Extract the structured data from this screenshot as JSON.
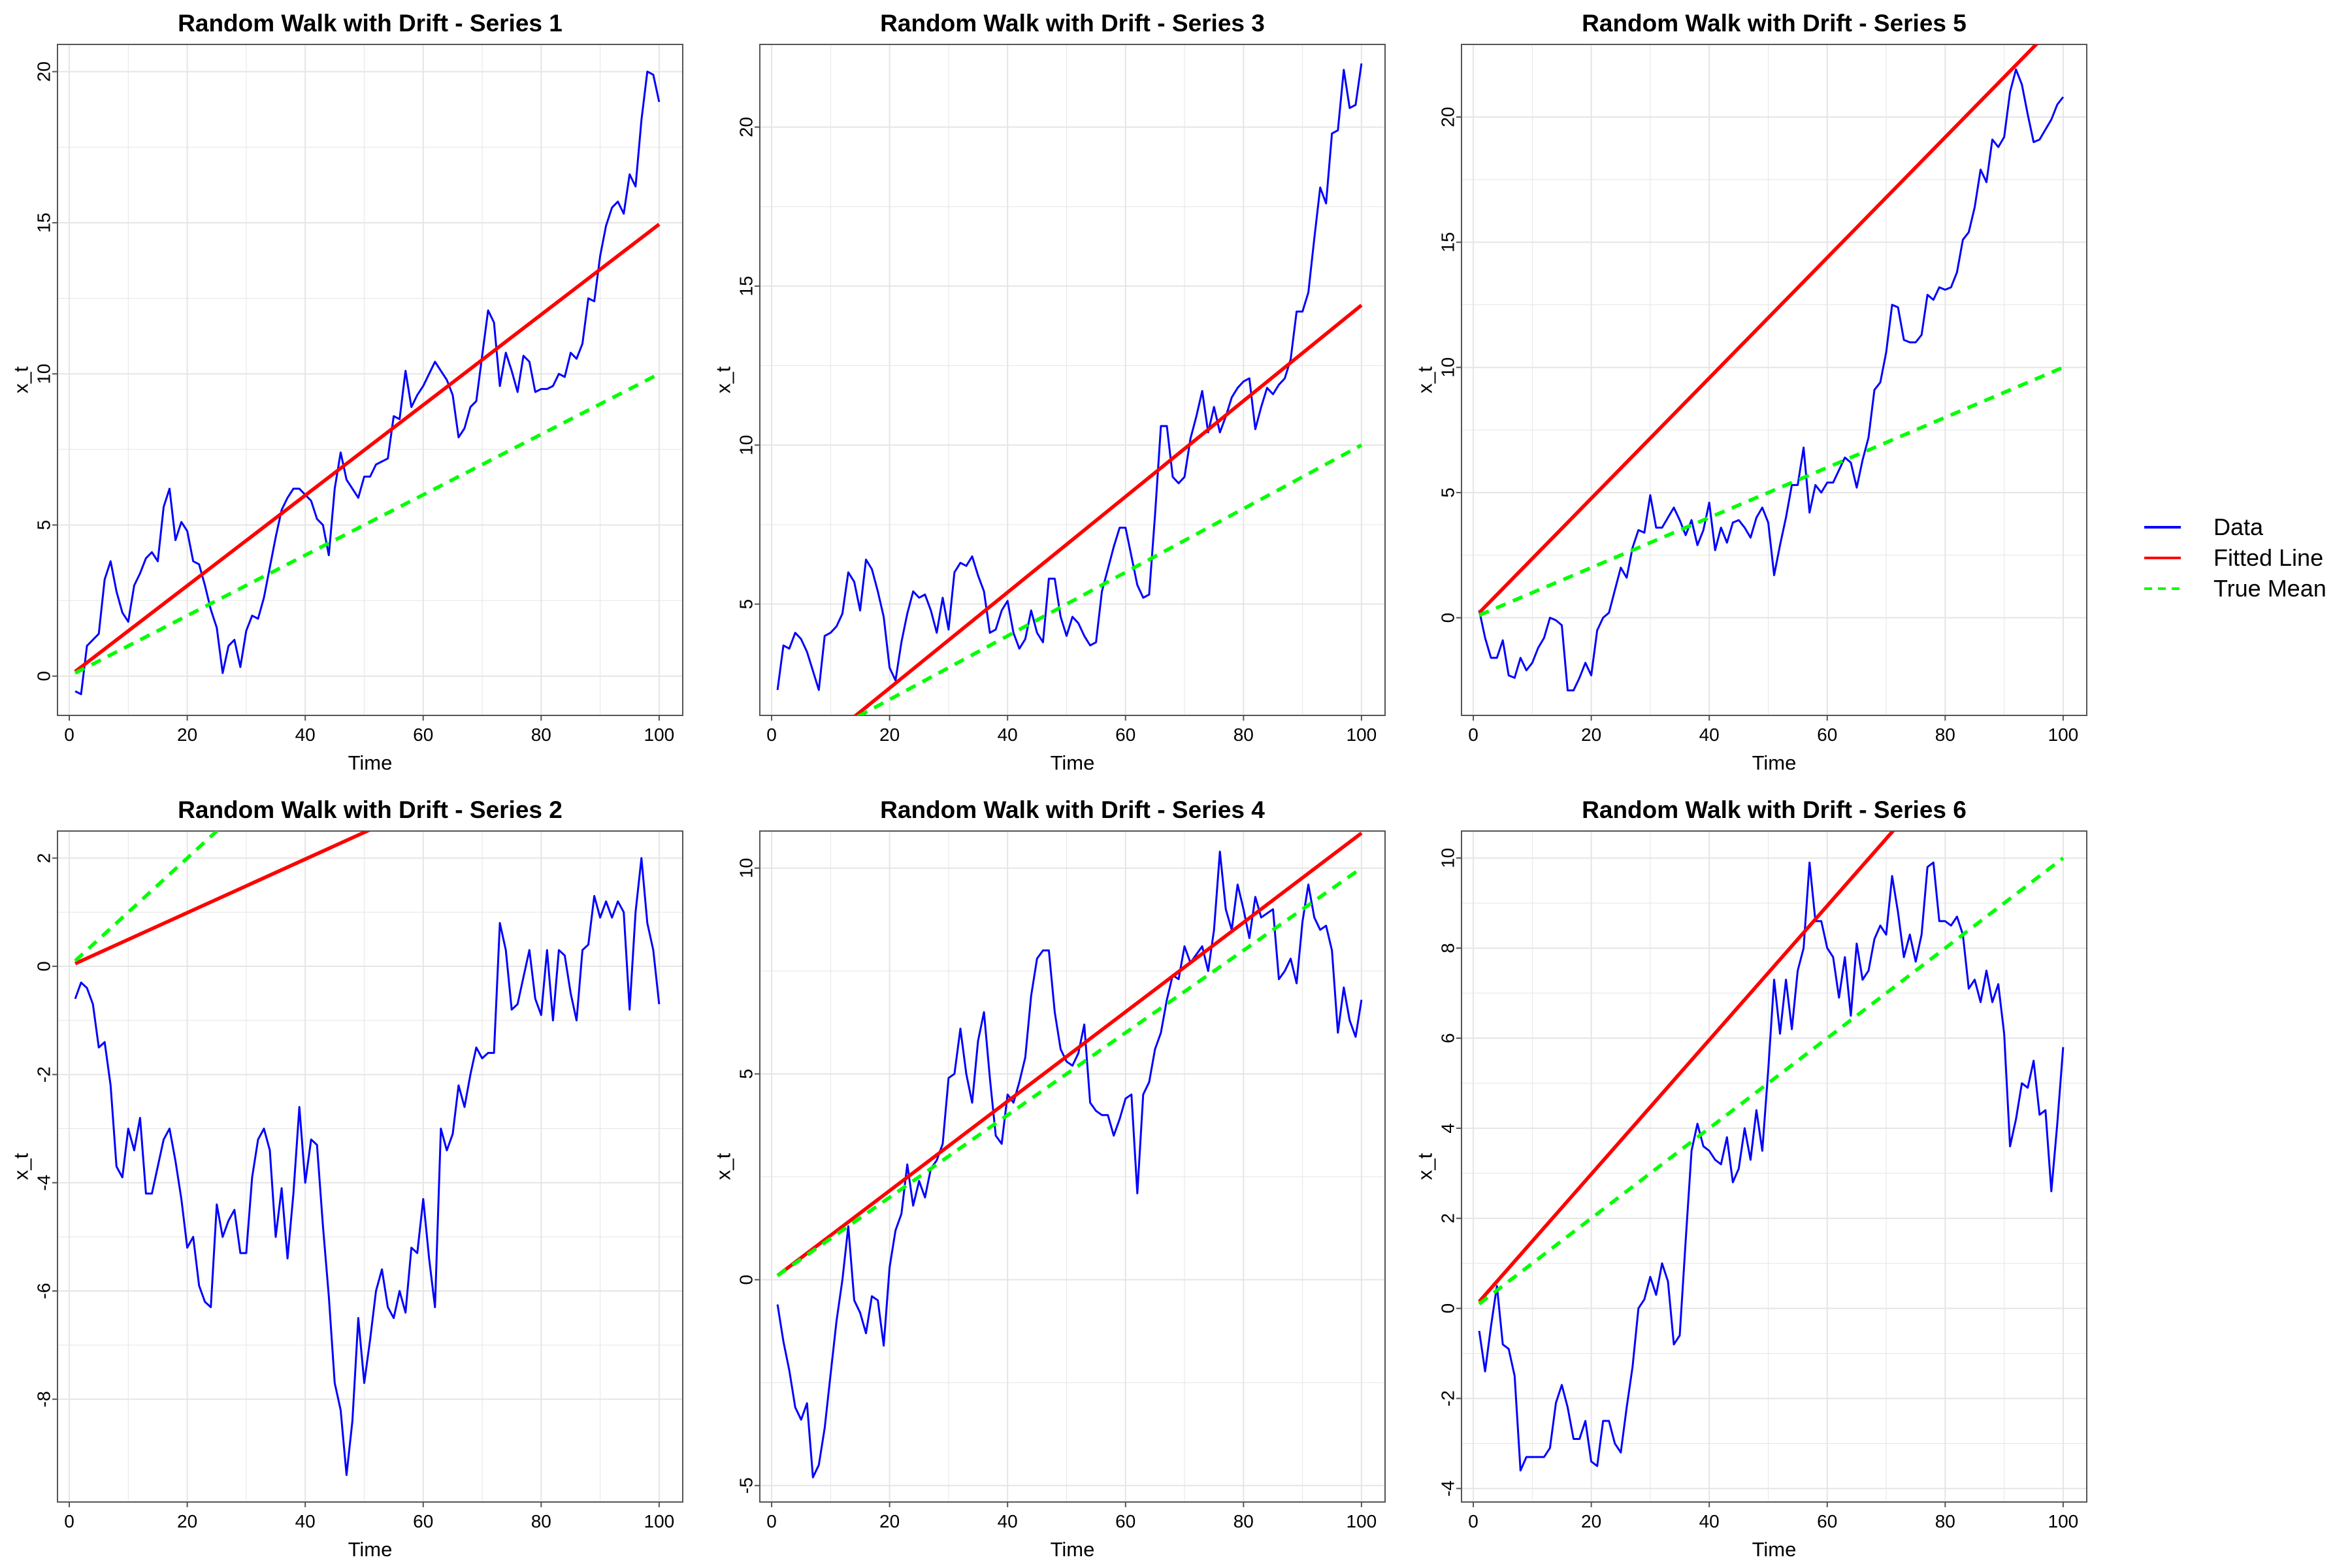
{
  "colors": {
    "data": "#0000FF",
    "fitted": "#FF0000",
    "true_mean": "#00FF00",
    "grid": "#E5E5E5",
    "axis": "#555555"
  },
  "legend": {
    "placement": "right",
    "entries": [
      {
        "label": "Data",
        "color": "#0000FF",
        "style": "solid"
      },
      {
        "label": "Fitted Line",
        "color": "#FF0000",
        "style": "solid"
      },
      {
        "label": "True Mean",
        "color": "#00FF00",
        "style": "dashed"
      }
    ]
  },
  "chart_data": [
    {
      "type": "line",
      "title": "Random Walk with Drift - Series 1",
      "xlabel": "Time",
      "ylabel": "x_t",
      "xlim": [
        -2,
        104
      ],
      "ylim": [
        -1.3,
        20.9
      ],
      "xticks": [
        0,
        20,
        40,
        60,
        80,
        100
      ],
      "yticks": [
        0,
        5,
        10,
        15,
        20
      ],
      "grid": true,
      "series": [
        {
          "name": "Data",
          "values": [
            -0.5,
            -0.6,
            1.0,
            1.2,
            1.4,
            3.2,
            3.8,
            2.8,
            2.1,
            1.8,
            3.0,
            3.4,
            3.9,
            4.1,
            3.8,
            5.6,
            6.2,
            4.5,
            5.1,
            4.8,
            3.8,
            3.7,
            3.0,
            2.2,
            1.6,
            0.1,
            1.0,
            1.2,
            0.3,
            1.5,
            2.0,
            1.9,
            2.6,
            3.6,
            4.6,
            5.5,
            5.9,
            6.2,
            6.2,
            6.0,
            5.8,
            5.2,
            5.0,
            4.0,
            6.2,
            7.4,
            6.5,
            6.2,
            5.9,
            6.6,
            6.6,
            7.0,
            7.1,
            7.2,
            8.6,
            8.5,
            10.1,
            8.9,
            9.3,
            9.6,
            10.0,
            10.4,
            10.1,
            9.8,
            9.3,
            7.9,
            8.2,
            8.9,
            9.1,
            10.6,
            12.1,
            11.7,
            9.6,
            10.7,
            10.1,
            9.4,
            10.6,
            10.4,
            9.4,
            9.5,
            9.5,
            9.6,
            10.0,
            9.9,
            10.7,
            10.5,
            11.0,
            12.5,
            12.4,
            13.9,
            14.9,
            15.5,
            15.7,
            15.3,
            16.6,
            16.2,
            18.4,
            20.0,
            19.9,
            19.0
          ]
        },
        {
          "name": "Fitted Line",
          "line": [
            [
              1,
              0.15
            ],
            [
              100,
              14.95
            ]
          ]
        },
        {
          "name": "True Mean",
          "line": [
            [
              1,
              0.1
            ],
            [
              100,
              10.0
            ]
          ]
        }
      ]
    },
    {
      "type": "line",
      "title": "Random Walk with Drift - Series 2",
      "xlabel": "Time",
      "ylabel": "x_t",
      "xlim": [
        -2,
        104
      ],
      "ylim": [
        -9.9,
        2.5
      ],
      "xticks": [
        0,
        20,
        40,
        60,
        80,
        100
      ],
      "yticks": [
        -8,
        -6,
        -4,
        -2,
        0,
        2
      ],
      "grid": true,
      "series": [
        {
          "name": "Data",
          "values": [
            -0.6,
            -0.3,
            -0.4,
            -0.7,
            -1.5,
            -1.4,
            -2.2,
            -3.7,
            -3.9,
            -3.0,
            -3.4,
            -2.8,
            -4.2,
            -4.2,
            -3.7,
            -3.2,
            -3.0,
            -3.6,
            -4.3,
            -5.2,
            -5.0,
            -5.9,
            -6.2,
            -6.3,
            -4.4,
            -5.0,
            -4.7,
            -4.5,
            -5.3,
            -5.3,
            -3.9,
            -3.2,
            -3.0,
            -3.4,
            -5.0,
            -4.1,
            -5.4,
            -4.2,
            -2.6,
            -4.0,
            -3.2,
            -3.3,
            -4.8,
            -6.1,
            -7.7,
            -8.2,
            -9.4,
            -8.4,
            -6.5,
            -7.7,
            -6.9,
            -6.0,
            -5.6,
            -6.3,
            -6.5,
            -6.0,
            -6.4,
            -5.2,
            -5.3,
            -4.3,
            -5.4,
            -6.3,
            -3.0,
            -3.4,
            -3.1,
            -2.2,
            -2.6,
            -2.0,
            -1.5,
            -1.7,
            -1.6,
            -1.6,
            0.8,
            0.3,
            -0.8,
            -0.7,
            -0.2,
            0.3,
            -0.6,
            -0.9,
            0.3,
            -1.0,
            0.3,
            0.2,
            -0.5,
            -1.0,
            0.3,
            0.4,
            1.3,
            0.9,
            1.2,
            0.9,
            1.2,
            1.0,
            -0.8,
            1.0,
            2.0,
            0.8,
            0.3,
            -0.7
          ]
        },
        {
          "name": "Fitted Line",
          "line": [
            [
              1,
              0.05
            ],
            [
              100,
              4.95
            ]
          ]
        },
        {
          "name": "True Mean",
          "line": [
            [
              1,
              0.1
            ],
            [
              100,
              10.0
            ]
          ]
        }
      ]
    },
    {
      "type": "line",
      "title": "Random Walk with Drift - Series 3",
      "xlabel": "Time",
      "ylabel": "x_t",
      "xlim": [
        -2,
        104
      ],
      "ylim": [
        1.5,
        22.6
      ],
      "xticks": [
        0,
        20,
        40,
        60,
        80,
        100
      ],
      "yticks": [
        5,
        10,
        15,
        20
      ],
      "grid": true,
      "series": [
        {
          "name": "Data",
          "values": [
            2.3,
            3.7,
            3.6,
            4.1,
            3.9,
            3.5,
            2.9,
            2.3,
            4.0,
            4.1,
            4.3,
            4.7,
            6.0,
            5.7,
            4.8,
            6.4,
            6.1,
            5.4,
            4.6,
            3.0,
            2.6,
            3.8,
            4.7,
            5.4,
            5.2,
            5.3,
            4.8,
            4.1,
            5.2,
            4.2,
            6.0,
            6.3,
            6.2,
            6.5,
            5.9,
            5.4,
            4.1,
            4.2,
            4.8,
            5.1,
            4.1,
            3.6,
            3.9,
            4.8,
            4.1,
            3.8,
            5.8,
            5.8,
            4.6,
            4.0,
            4.6,
            4.4,
            4.0,
            3.7,
            3.8,
            5.4,
            6.1,
            6.8,
            7.4,
            7.4,
            6.5,
            5.6,
            5.2,
            5.3,
            7.8,
            10.6,
            10.6,
            9.0,
            8.8,
            9.0,
            10.2,
            10.9,
            11.7,
            10.4,
            11.2,
            10.4,
            10.9,
            11.5,
            11.8,
            12.0,
            12.1,
            10.5,
            11.2,
            11.8,
            11.6,
            11.9,
            12.1,
            12.7,
            14.2,
            14.2,
            14.8,
            16.5,
            18.1,
            17.6,
            19.8,
            19.9,
            21.8,
            20.6,
            20.7,
            22.0
          ]
        },
        {
          "name": "Fitted Line",
          "line": [
            [
              1,
              -0.5
            ],
            [
              100,
              14.4
            ]
          ]
        },
        {
          "name": "True Mean",
          "line": [
            [
              1,
              0.1
            ],
            [
              100,
              10.0
            ]
          ]
        }
      ]
    },
    {
      "type": "line",
      "title": "Random Walk with Drift - Series 4",
      "xlabel": "Time",
      "ylabel": "x_t",
      "xlim": [
        -2,
        104
      ],
      "ylim": [
        -5.4,
        10.9
      ],
      "xticks": [
        0,
        20,
        40,
        60,
        80,
        100
      ],
      "yticks": [
        -5,
        0,
        5,
        10
      ],
      "grid": true,
      "series": [
        {
          "name": "Data",
          "values": [
            -0.6,
            -1.5,
            -2.2,
            -3.1,
            -3.4,
            -3.0,
            -4.8,
            -4.5,
            -3.6,
            -2.3,
            -1.0,
            0.0,
            1.3,
            -0.5,
            -0.8,
            -1.3,
            -0.4,
            -0.5,
            -1.6,
            0.3,
            1.2,
            1.6,
            2.8,
            1.8,
            2.4,
            2.0,
            2.7,
            2.9,
            3.3,
            4.9,
            5.0,
            6.1,
            5.0,
            4.3,
            5.8,
            6.5,
            4.9,
            3.5,
            3.3,
            4.5,
            4.3,
            4.8,
            5.4,
            6.9,
            7.8,
            8.0,
            8.0,
            6.5,
            5.6,
            5.3,
            5.2,
            5.5,
            6.2,
            4.3,
            4.1,
            4.0,
            4.0,
            3.5,
            3.9,
            4.4,
            4.5,
            2.1,
            4.5,
            4.8,
            5.6,
            6.0,
            6.8,
            7.4,
            7.3,
            8.1,
            7.7,
            7.9,
            8.1,
            7.5,
            8.5,
            10.4,
            9.0,
            8.5,
            9.6,
            9.0,
            8.3,
            9.3,
            8.8,
            8.9,
            9.0,
            7.3,
            7.5,
            7.8,
            7.2,
            8.7,
            9.6,
            8.8,
            8.5,
            8.6,
            8.0,
            6.0,
            7.1,
            6.3,
            5.9,
            6.8
          ]
        },
        {
          "name": "Fitted Line",
          "line": [
            [
              1,
              0.1
            ],
            [
              100,
              10.85
            ]
          ]
        },
        {
          "name": "True Mean",
          "line": [
            [
              1,
              0.1
            ],
            [
              100,
              10.0
            ]
          ]
        }
      ]
    },
    {
      "type": "line",
      "title": "Random Walk with Drift - Series 5",
      "xlabel": "Time",
      "ylabel": "x_t",
      "xlim": [
        -2,
        104
      ],
      "ylim": [
        -3.9,
        22.9
      ],
      "xticks": [
        0,
        20,
        40,
        60,
        80,
        100
      ],
      "yticks": [
        0,
        5,
        10,
        15,
        20
      ],
      "grid": true,
      "series": [
        {
          "name": "Data",
          "values": [
            0.3,
            -0.8,
            -1.6,
            -1.6,
            -0.9,
            -2.3,
            -2.4,
            -1.6,
            -2.1,
            -1.8,
            -1.2,
            -0.8,
            0.0,
            -0.1,
            -0.3,
            -2.9,
            -2.9,
            -2.4,
            -1.8,
            -2.3,
            -0.5,
            0.0,
            0.2,
            1.1,
            2.0,
            1.6,
            2.8,
            3.5,
            3.4,
            4.9,
            3.6,
            3.6,
            4.0,
            4.4,
            3.9,
            3.3,
            3.9,
            2.9,
            3.5,
            4.6,
            2.7,
            3.6,
            3.0,
            3.8,
            3.9,
            3.6,
            3.2,
            4.0,
            4.4,
            3.8,
            1.7,
            2.9,
            4.0,
            5.3,
            5.3,
            6.8,
            4.2,
            5.3,
            5.0,
            5.4,
            5.4,
            5.9,
            6.4,
            6.2,
            5.2,
            6.3,
            7.2,
            9.1,
            9.4,
            10.6,
            12.5,
            12.4,
            11.1,
            11.0,
            11.0,
            11.3,
            12.9,
            12.7,
            13.2,
            13.1,
            13.2,
            13.8,
            15.1,
            15.4,
            16.4,
            17.9,
            17.4,
            19.1,
            18.8,
            19.2,
            21.0,
            21.9,
            21.3,
            20.1,
            19.0,
            19.1,
            19.5,
            19.9,
            20.5,
            20.8
          ]
        },
        {
          "name": "Fitted Line",
          "line": [
            [
              1,
              0.2
            ],
            [
              100,
              24.0
            ]
          ]
        },
        {
          "name": "True Mean",
          "line": [
            [
              1,
              0.1
            ],
            [
              100,
              10.0
            ]
          ]
        }
      ]
    },
    {
      "type": "line",
      "title": "Random Walk with Drift - Series 6",
      "xlabel": "Time",
      "ylabel": "x_t",
      "xlim": [
        -2,
        104
      ],
      "ylim": [
        -4.3,
        10.6
      ],
      "xticks": [
        0,
        20,
        40,
        60,
        80,
        100
      ],
      "yticks": [
        -4,
        -2,
        0,
        2,
        4,
        6,
        8,
        10
      ],
      "grid": true,
      "series": [
        {
          "name": "Data",
          "values": [
            -0.5,
            -1.4,
            -0.4,
            0.5,
            -0.8,
            -0.9,
            -1.5,
            -3.6,
            -3.3,
            -3.3,
            -3.3,
            -3.3,
            -3.1,
            -2.1,
            -1.7,
            -2.2,
            -2.9,
            -2.9,
            -2.5,
            -3.4,
            -3.5,
            -2.5,
            -2.5,
            -3.0,
            -3.2,
            -2.2,
            -1.3,
            0.0,
            0.2,
            0.7,
            0.3,
            1.0,
            0.6,
            -0.8,
            -0.6,
            1.5,
            3.5,
            4.1,
            3.6,
            3.5,
            3.3,
            3.2,
            3.8,
            2.8,
            3.1,
            4.0,
            3.3,
            4.4,
            3.5,
            5.3,
            7.3,
            6.1,
            7.3,
            6.2,
            7.5,
            8.0,
            9.9,
            8.6,
            8.6,
            8.0,
            7.8,
            6.9,
            7.8,
            6.5,
            8.1,
            7.3,
            7.5,
            8.2,
            8.5,
            8.3,
            9.6,
            8.8,
            7.8,
            8.3,
            7.7,
            8.3,
            9.8,
            9.9,
            8.6,
            8.6,
            8.5,
            8.7,
            8.3,
            7.1,
            7.3,
            6.8,
            7.5,
            6.8,
            7.2,
            6.1,
            3.6,
            4.2,
            5.0,
            4.9,
            5.5,
            4.3,
            4.4,
            2.6,
            4.1,
            5.8
          ]
        },
        {
          "name": "Fitted Line",
          "line": [
            [
              1,
              0.15
            ],
            [
              100,
              14.9
            ]
          ]
        },
        {
          "name": "True Mean",
          "line": [
            [
              1,
              0.1
            ],
            [
              100,
              10.0
            ]
          ]
        }
      ]
    }
  ]
}
